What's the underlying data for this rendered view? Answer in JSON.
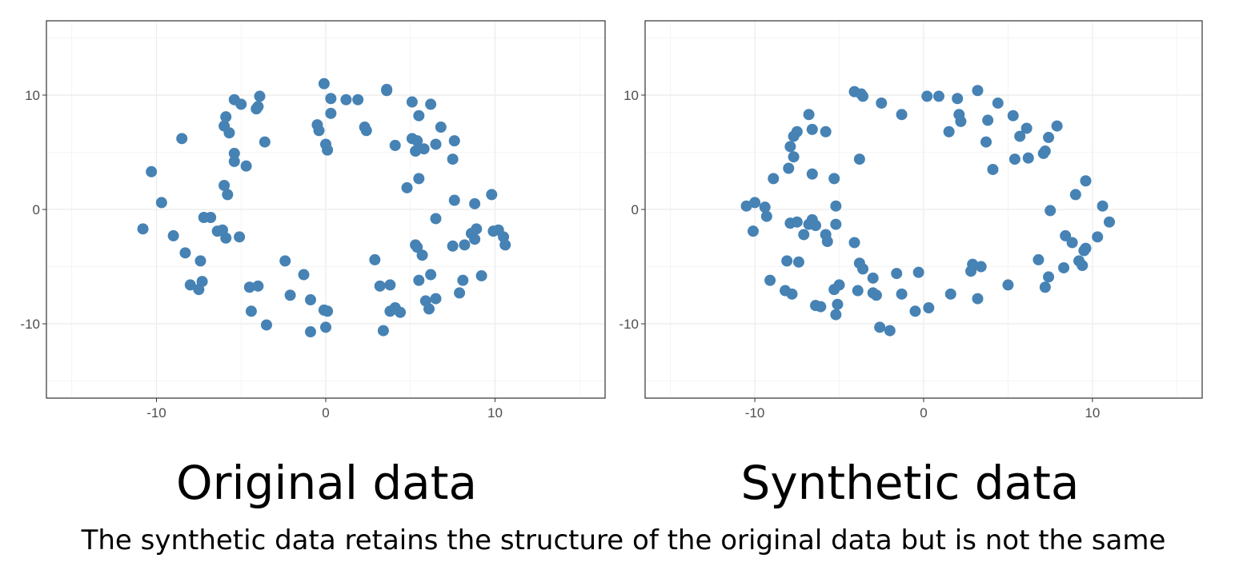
{
  "chart_data": [
    {
      "type": "scatter",
      "title": "Original data",
      "xlabel": "",
      "ylabel": "",
      "xlim": [
        -16.5,
        16.5
      ],
      "ylim": [
        -16.5,
        16.5
      ],
      "xticks": [
        -10,
        0,
        10
      ],
      "yticks": [
        -10,
        0,
        10
      ],
      "xtick_labels": [
        "-10",
        "0",
        "10"
      ],
      "ytick_labels": [
        "-10",
        "0",
        "10"
      ],
      "grid": true,
      "legend": "none",
      "marker_color": "#4682B4",
      "points": [
        [
          -10.8,
          -1.7
        ],
        [
          -10.3,
          3.3
        ],
        [
          -9.7,
          0.6
        ],
        [
          -9.0,
          -2.3
        ],
        [
          -8.5,
          6.2
        ],
        [
          -8.3,
          -3.8
        ],
        [
          -8.0,
          -6.6
        ],
        [
          -7.5,
          -7.0
        ],
        [
          -7.4,
          -4.5
        ],
        [
          -7.3,
          -6.3
        ],
        [
          -7.2,
          -0.7
        ],
        [
          -6.8,
          -0.7
        ],
        [
          -6.4,
          -1.9
        ],
        [
          -6.1,
          -1.8
        ],
        [
          -5.9,
          -2.5
        ],
        [
          -6.0,
          2.1
        ],
        [
          -5.8,
          1.3
        ],
        [
          -6.0,
          7.3
        ],
        [
          -5.9,
          8.1
        ],
        [
          -5.7,
          6.7
        ],
        [
          -5.4,
          9.6
        ],
        [
          -5.4,
          4.9
        ],
        [
          -5.4,
          4.2
        ],
        [
          -5.0,
          9.2
        ],
        [
          -5.1,
          -2.4
        ],
        [
          -4.7,
          3.8
        ],
        [
          -4.5,
          -6.8
        ],
        [
          -4.4,
          -8.9
        ],
        [
          -4.1,
          8.8
        ],
        [
          -4.0,
          9.0
        ],
        [
          -3.9,
          9.9
        ],
        [
          -4.0,
          -6.7
        ],
        [
          -3.6,
          5.9
        ],
        [
          -3.5,
          -10.1
        ],
        [
          -2.4,
          -4.5
        ],
        [
          -2.1,
          -7.5
        ],
        [
          -1.3,
          -5.7
        ],
        [
          -0.9,
          -7.9
        ],
        [
          -0.9,
          -10.7
        ],
        [
          -0.5,
          7.4
        ],
        [
          -0.4,
          6.9
        ],
        [
          -0.1,
          -8.8
        ],
        [
          -0.1,
          11.0
        ],
        [
          0.0,
          5.7
        ],
        [
          0.1,
          5.2
        ],
        [
          0.1,
          -8.9
        ],
        [
          0.0,
          -10.3
        ],
        [
          0.3,
          8.4
        ],
        [
          0.3,
          9.7
        ],
        [
          1.2,
          9.6
        ],
        [
          1.9,
          9.6
        ],
        [
          2.3,
          7.2
        ],
        [
          2.4,
          6.9
        ],
        [
          2.9,
          -4.4
        ],
        [
          3.2,
          -6.7
        ],
        [
          3.4,
          -10.6
        ],
        [
          3.6,
          10.5
        ],
        [
          3.6,
          10.4
        ],
        [
          3.8,
          -6.6
        ],
        [
          3.8,
          -8.9
        ],
        [
          4.1,
          -8.6
        ],
        [
          4.1,
          5.6
        ],
        [
          4.4,
          -9.0
        ],
        [
          4.8,
          1.9
        ],
        [
          5.1,
          9.4
        ],
        [
          5.1,
          6.2
        ],
        [
          5.3,
          5.1
        ],
        [
          5.4,
          6.0
        ],
        [
          5.3,
          -3.1
        ],
        [
          5.4,
          -3.3
        ],
        [
          5.5,
          2.7
        ],
        [
          5.5,
          -6.2
        ],
        [
          5.5,
          8.2
        ],
        [
          5.7,
          -4.0
        ],
        [
          5.8,
          5.3
        ],
        [
          5.9,
          -8.0
        ],
        [
          6.1,
          -8.7
        ],
        [
          6.2,
          -5.7
        ],
        [
          6.2,
          9.2
        ],
        [
          6.5,
          -7.8
        ],
        [
          6.5,
          -0.8
        ],
        [
          6.5,
          5.7
        ],
        [
          6.8,
          7.2
        ],
        [
          7.5,
          -3.2
        ],
        [
          7.5,
          4.4
        ],
        [
          7.6,
          6.0
        ],
        [
          7.6,
          0.8
        ],
        [
          7.9,
          -7.3
        ],
        [
          8.1,
          -6.2
        ],
        [
          8.2,
          -3.1
        ],
        [
          8.6,
          -2.1
        ],
        [
          8.8,
          -2.6
        ],
        [
          8.8,
          0.5
        ],
        [
          8.9,
          -1.7
        ],
        [
          9.2,
          -5.8
        ],
        [
          9.8,
          1.3
        ],
        [
          9.9,
          -1.9
        ],
        [
          10.2,
          -1.8
        ],
        [
          10.5,
          -2.4
        ],
        [
          10.6,
          -3.1
        ]
      ]
    },
    {
      "type": "scatter",
      "title": "Synthetic data",
      "xlabel": "",
      "ylabel": "",
      "xlim": [
        -16.5,
        16.5
      ],
      "ylim": [
        -16.5,
        16.5
      ],
      "xticks": [
        -10,
        0,
        10
      ],
      "yticks": [
        -10,
        0,
        10
      ],
      "xtick_labels": [
        "-10",
        "0",
        "10"
      ],
      "ytick_labels": [
        "-10",
        "0",
        "10"
      ],
      "grid": true,
      "legend": "none",
      "marker_color": "#4682B4",
      "points": [
        [
          -10.5,
          0.3
        ],
        [
          -10.1,
          -1.9
        ],
        [
          -10.0,
          0.6
        ],
        [
          -9.4,
          0.2
        ],
        [
          -9.3,
          -0.6
        ],
        [
          -9.1,
          -6.2
        ],
        [
          -8.9,
          2.7
        ],
        [
          -8.2,
          -7.1
        ],
        [
          -8.1,
          -4.5
        ],
        [
          -8.0,
          3.6
        ],
        [
          -7.9,
          5.5
        ],
        [
          -7.9,
          -1.2
        ],
        [
          -7.7,
          6.4
        ],
        [
          -7.8,
          -7.4
        ],
        [
          -7.7,
          4.6
        ],
        [
          -7.5,
          6.8
        ],
        [
          -7.5,
          -1.1
        ],
        [
          -7.4,
          -4.6
        ],
        [
          -7.1,
          -2.2
        ],
        [
          -6.8,
          8.3
        ],
        [
          -6.8,
          -1.3
        ],
        [
          -6.6,
          -0.9
        ],
        [
          -6.6,
          7.0
        ],
        [
          -6.6,
          3.1
        ],
        [
          -6.4,
          -1.4
        ],
        [
          -6.4,
          -8.4
        ],
        [
          -6.1,
          -8.5
        ],
        [
          -5.8,
          6.8
        ],
        [
          -5.8,
          -2.2
        ],
        [
          -5.7,
          -2.8
        ],
        [
          -5.3,
          2.7
        ],
        [
          -5.2,
          0.3
        ],
        [
          -5.2,
          -1.3
        ],
        [
          -5.3,
          -7.0
        ],
        [
          -5.2,
          -9.2
        ],
        [
          -5.1,
          -8.3
        ],
        [
          -5.0,
          -6.6
        ],
        [
          -4.1,
          10.3
        ],
        [
          -4.1,
          -2.9
        ],
        [
          -3.9,
          -7.1
        ],
        [
          -3.8,
          4.4
        ],
        [
          -3.7,
          10.1
        ],
        [
          -3.8,
          -4.7
        ],
        [
          -3.6,
          9.9
        ],
        [
          -3.6,
          -5.2
        ],
        [
          -3.0,
          -6.0
        ],
        [
          -3.0,
          -7.3
        ],
        [
          -2.8,
          -7.5
        ],
        [
          -2.6,
          -10.3
        ],
        [
          -2.5,
          9.3
        ],
        [
          -2.0,
          -10.6
        ],
        [
          -1.6,
          -5.6
        ],
        [
          -1.3,
          8.3
        ],
        [
          -1.3,
          -7.4
        ],
        [
          -0.5,
          -8.9
        ],
        [
          -0.3,
          -5.5
        ],
        [
          0.2,
          9.9
        ],
        [
          0.3,
          -8.6
        ],
        [
          0.9,
          9.9
        ],
        [
          1.5,
          6.8
        ],
        [
          1.6,
          -7.4
        ],
        [
          2.0,
          9.7
        ],
        [
          2.1,
          8.3
        ],
        [
          2.2,
          7.7
        ],
        [
          2.8,
          -5.4
        ],
        [
          2.9,
          -4.8
        ],
        [
          3.2,
          -7.8
        ],
        [
          3.2,
          10.4
        ],
        [
          3.4,
          -5.0
        ],
        [
          3.7,
          5.9
        ],
        [
          3.8,
          7.8
        ],
        [
          4.1,
          3.5
        ],
        [
          4.4,
          9.3
        ],
        [
          5.0,
          -6.6
        ],
        [
          5.3,
          8.2
        ],
        [
          5.4,
          4.4
        ],
        [
          5.7,
          6.4
        ],
        [
          6.1,
          7.1
        ],
        [
          6.2,
          4.5
        ],
        [
          6.8,
          -4.4
        ],
        [
          7.1,
          4.9
        ],
        [
          7.2,
          5.1
        ],
        [
          7.2,
          -6.8
        ],
        [
          7.4,
          6.3
        ],
        [
          7.4,
          -5.9
        ],
        [
          7.5,
          -0.1
        ],
        [
          7.9,
          7.3
        ],
        [
          8.3,
          -5.1
        ],
        [
          8.4,
          -2.3
        ],
        [
          8.8,
          -2.9
        ],
        [
          9.0,
          1.3
        ],
        [
          9.2,
          -4.5
        ],
        [
          9.4,
          -4.9
        ],
        [
          9.5,
          -3.6
        ],
        [
          9.6,
          -3.4
        ],
        [
          9.6,
          2.5
        ],
        [
          10.3,
          -2.4
        ],
        [
          10.6,
          0.3
        ],
        [
          11.0,
          -1.1
        ]
      ]
    }
  ],
  "caption": "The synthetic data retains the structure of the original data but is not the same"
}
